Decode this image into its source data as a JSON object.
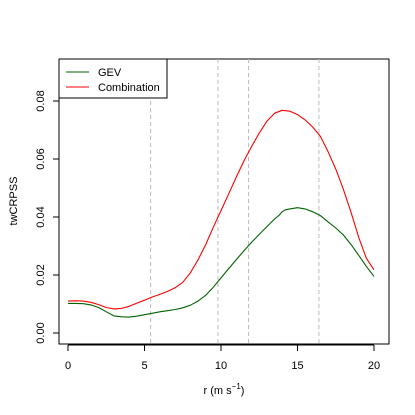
{
  "chart_data": {
    "type": "line",
    "ylabel": "twCRPSS",
    "xlabel_main": "r (m s",
    "xlabel_sup": "−1",
    "xlabel_close": ")",
    "xlim": [
      0,
      20
    ],
    "ylim": [
      0,
      0.08
    ],
    "x_ticks": [
      0,
      5,
      10,
      15,
      20
    ],
    "x_tick_labels": [
      "0",
      "5",
      "10",
      "15",
      "20"
    ],
    "y_ticks": [
      0,
      0.02,
      0.04,
      0.06,
      0.08
    ],
    "y_tick_labels": [
      "0.00",
      "0.02",
      "0.04",
      "0.06",
      "0.08"
    ],
    "vlines": [
      5.4,
      9.8,
      11.8,
      16.4
    ],
    "legend_position": "top-left",
    "series": [
      {
        "name": "GEV",
        "color": "#006400",
        "x": [
          0,
          0.5,
          1,
          1.5,
          2,
          2.5,
          3,
          3.5,
          4,
          4.5,
          5,
          5.5,
          6,
          6.5,
          7,
          7.5,
          8,
          8.5,
          9,
          9.5,
          10,
          10.5,
          11,
          11.5,
          12,
          12.5,
          13,
          13.5,
          13.8,
          14,
          14.2,
          14.5,
          15,
          15.5,
          16,
          16.5,
          17,
          17.5,
          18,
          18.5,
          19,
          19.5,
          20
        ],
        "y": [
          0.0102,
          0.0102,
          0.0101,
          0.0097,
          0.0088,
          0.0073,
          0.0059,
          0.0056,
          0.0055,
          0.0058,
          0.0063,
          0.0068,
          0.0073,
          0.0077,
          0.0081,
          0.0087,
          0.0096,
          0.011,
          0.013,
          0.0158,
          0.019,
          0.0222,
          0.0253,
          0.0283,
          0.0313,
          0.034,
          0.0367,
          0.0393,
          0.0406,
          0.0418,
          0.0425,
          0.0428,
          0.0432,
          0.0428,
          0.0418,
          0.0405,
          0.0383,
          0.0362,
          0.0338,
          0.0305,
          0.0268,
          0.023,
          0.0195
        ]
      },
      {
        "name": "Combination",
        "color": "#ff0000",
        "x": [
          0,
          0.5,
          1,
          1.5,
          2,
          2.5,
          3,
          3.5,
          4,
          4.5,
          5,
          5.5,
          6,
          6.5,
          7,
          7.5,
          8,
          8.5,
          9,
          9.5,
          10,
          10.5,
          11,
          11.5,
          12,
          12.5,
          13,
          13.5,
          14,
          14.5,
          15,
          15.5,
          16,
          16.5,
          17,
          17.5,
          18,
          18.5,
          19,
          19.5,
          20
        ],
        "y": [
          0.011,
          0.0111,
          0.011,
          0.0106,
          0.0098,
          0.0088,
          0.0083,
          0.0085,
          0.0092,
          0.0103,
          0.0113,
          0.0124,
          0.0133,
          0.0143,
          0.0156,
          0.0175,
          0.0208,
          0.0252,
          0.0305,
          0.0365,
          0.0422,
          0.048,
          0.0538,
          0.0593,
          0.0643,
          0.069,
          0.073,
          0.0758,
          0.0768,
          0.0765,
          0.0753,
          0.0735,
          0.071,
          0.0678,
          0.0625,
          0.0565,
          0.0495,
          0.0415,
          0.033,
          0.0258,
          0.0218
        ]
      }
    ]
  }
}
